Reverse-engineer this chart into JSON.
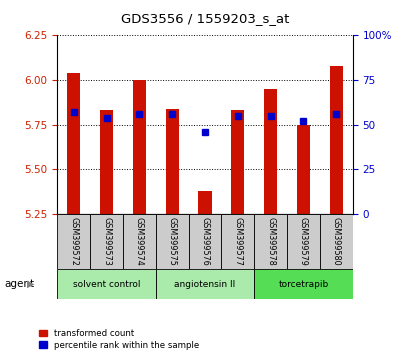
{
  "title": "GDS3556 / 1559203_s_at",
  "samples": [
    "GSM399572",
    "GSM399573",
    "GSM399574",
    "GSM399575",
    "GSM399576",
    "GSM399577",
    "GSM399578",
    "GSM399579",
    "GSM399580"
  ],
  "red_values": [
    6.04,
    5.83,
    6.0,
    5.84,
    5.38,
    5.83,
    5.95,
    5.75,
    6.08
  ],
  "blue_values": [
    5.82,
    5.79,
    5.81,
    5.81,
    5.71,
    5.8,
    5.8,
    5.77,
    5.81
  ],
  "y_min": 5.25,
  "y_max": 6.25,
  "y_ticks_left": [
    5.25,
    5.5,
    5.75,
    6.0,
    6.25
  ],
  "y_ticks_right": [
    0,
    25,
    50,
    75,
    100
  ],
  "right_y_labels": [
    "0",
    "25",
    "50",
    "75",
    "100%"
  ],
  "groups": [
    {
      "label": "solvent control",
      "start": 0,
      "end": 3,
      "color": "#aaeaaa"
    },
    {
      "label": "angiotensin II",
      "start": 3,
      "end": 6,
      "color": "#aaeaaa"
    },
    {
      "label": "torcetrapib",
      "start": 6,
      "end": 9,
      "color": "#55dd55"
    }
  ],
  "bar_width": 0.4,
  "bar_color": "#cc1100",
  "dot_color": "#0000cc",
  "dot_size": 30,
  "agent_label": "agent",
  "legend_red": "transformed count",
  "legend_blue": "percentile rank within the sample",
  "tick_color_left": "#cc2200",
  "tick_color_right": "#0000cc"
}
